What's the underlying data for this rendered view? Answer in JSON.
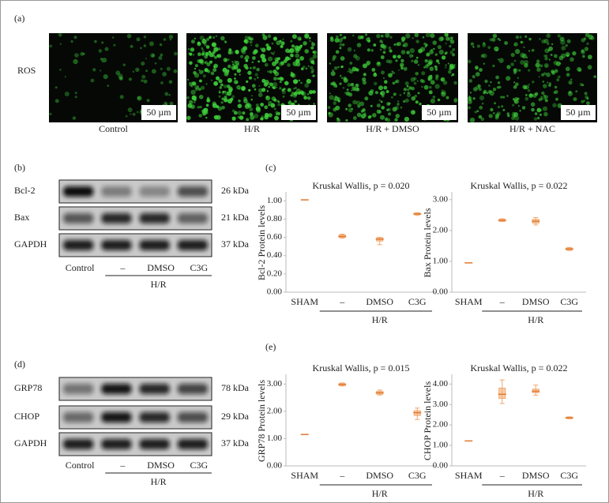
{
  "panel_labels": [
    "(a)",
    "(b)",
    "(c)",
    "(d)",
    "(e)"
  ],
  "ros": {
    "row_label": "ROS",
    "scale_bar": "50 µm",
    "images": [
      "Control",
      "H/R",
      "H/R + DMSO",
      "H/R + NAC"
    ]
  },
  "blots": [
    {
      "rows": [
        {
          "name": "Bcl-2",
          "size": "26 kDa"
        },
        {
          "name": "Bax",
          "size": "21 kDa"
        },
        {
          "name": "GAPDH",
          "size": "37 kDa"
        }
      ],
      "lanes": [
        "Control",
        "–",
        "DMSO",
        "C3G"
      ],
      "group": "H/R"
    },
    {
      "rows": [
        {
          "name": "GRP78",
          "size": "78 kDa"
        },
        {
          "name": "CHOP",
          "size": "29 kDa"
        },
        {
          "name": "GAPDH",
          "size": "37 kDa"
        }
      ],
      "lanes": [
        "Control",
        "–",
        "DMSO",
        "C3G"
      ],
      "group": "H/R"
    }
  ],
  "chart_data": [
    {
      "type": "box",
      "title": "Kruskal Wallis, p = 0.020",
      "y_label": "Bcl-2 Protein levels",
      "group": "H/R",
      "color": "#f2a66c",
      "categories": [
        "SHAM",
        "–",
        "DMSO",
        "C3G"
      ],
      "median": [
        1.01,
        0.61,
        0.58,
        0.855
      ],
      "q1": [
        1.01,
        0.6,
        0.56,
        0.85
      ],
      "q3": [
        1.01,
        0.625,
        0.595,
        0.865
      ],
      "min": [
        1.01,
        0.59,
        0.52,
        0.84
      ],
      "max": [
        1.01,
        0.635,
        0.6,
        0.87
      ],
      "ylim": [
        0,
        1.08
      ],
      "yticks": [
        {
          "value": 0,
          "label": "0.00"
        },
        {
          "value": 0.2,
          "label": "0.20"
        },
        {
          "value": 0.4,
          "label": "0.40"
        },
        {
          "value": 0.6,
          "label": "0.60"
        },
        {
          "value": 0.8,
          "label": "0.80"
        },
        {
          "value": 1,
          "label": "1.00"
        }
      ]
    },
    {
      "type": "box",
      "title": "Kruskal Wallis, p = 0.022",
      "y_label": "Bax Protein levels",
      "group": "H/R",
      "color": "#f2a66c",
      "categories": [
        "SHAM",
        "–",
        "DMSO",
        "C3G"
      ],
      "median": [
        0.95,
        2.33,
        2.3,
        1.4
      ],
      "q1": [
        0.95,
        2.3,
        2.24,
        1.37
      ],
      "q3": [
        0.95,
        2.36,
        2.36,
        1.43
      ],
      "min": [
        0.95,
        2.29,
        2.18,
        1.35
      ],
      "max": [
        0.95,
        2.38,
        2.42,
        1.45
      ],
      "ylim": [
        0,
        3.2
      ],
      "yticks": [
        {
          "value": 0,
          "label": "0.00"
        },
        {
          "value": 1,
          "label": "1.00"
        },
        {
          "value": 2,
          "label": "2.00"
        },
        {
          "value": 3,
          "label": "3.00"
        }
      ]
    },
    {
      "type": "box",
      "title": "Kruskal Wallis, p = 0.015",
      "y_label": "GRP78 Protein levels",
      "group": "H/R",
      "color": "#f2a66c",
      "categories": [
        "SHAM",
        "–",
        "DMSO",
        "C3G"
      ],
      "median": [
        1.15,
        2.98,
        2.68,
        1.95
      ],
      "q1": [
        1.15,
        2.95,
        2.63,
        1.85
      ],
      "q3": [
        1.15,
        3.02,
        2.73,
        2.02
      ],
      "min": [
        1.15,
        2.93,
        2.6,
        1.7
      ],
      "max": [
        1.15,
        3.04,
        2.78,
        2.12
      ],
      "ylim": [
        0,
        3.3
      ],
      "yticks": [
        {
          "value": 0,
          "label": "0.00"
        },
        {
          "value": 1,
          "label": "1.00"
        },
        {
          "value": 2,
          "label": "2.00"
        },
        {
          "value": 3,
          "label": "3.00"
        }
      ]
    },
    {
      "type": "box",
      "title": "Kruskal Wallis, p = 0.022",
      "y_label": "CHOP Protein levels",
      "group": "H/R",
      "color": "#f2a66c",
      "categories": [
        "SHAM",
        "–",
        "DMSO",
        "C3G"
      ],
      "median": [
        1.22,
        3.5,
        3.65,
        2.35
      ],
      "q1": [
        1.22,
        3.3,
        3.58,
        2.32
      ],
      "q3": [
        1.22,
        3.8,
        3.75,
        2.38
      ],
      "min": [
        1.22,
        3.05,
        3.45,
        2.3
      ],
      "max": [
        1.22,
        4.2,
        3.95,
        2.4
      ],
      "ylim": [
        0,
        4.4
      ],
      "yticks": [
        {
          "value": 0,
          "label": "0.00"
        },
        {
          "value": 1,
          "label": "1.00"
        },
        {
          "value": 2,
          "label": "2.00"
        },
        {
          "value": 3,
          "label": "3.00"
        },
        {
          "value": 4,
          "label": "4.00"
        }
      ]
    }
  ]
}
